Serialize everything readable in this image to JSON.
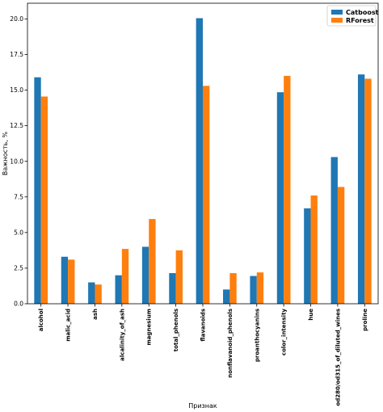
{
  "chart_data": {
    "type": "bar",
    "categories": [
      "alcohol",
      "malic_acid",
      "ash",
      "alcalinity_of_ash",
      "magnesium",
      "total_phenols",
      "flavanoids",
      "nonflavanoid_phenols",
      "proanthocyanins",
      "color_intensity",
      "hue",
      "od280/od315_of_diluted_wines",
      "proline"
    ],
    "series": [
      {
        "name": "Catboost",
        "color": "#1f77b4",
        "values": [
          15.9,
          3.3,
          1.5,
          2.0,
          4.0,
          2.15,
          20.05,
          1.0,
          1.95,
          14.85,
          6.7,
          10.3,
          16.1
        ]
      },
      {
        "name": "RForest",
        "color": "#ff7f0e",
        "values": [
          14.55,
          3.1,
          1.35,
          3.85,
          5.95,
          3.75,
          15.3,
          2.15,
          2.2,
          16.0,
          7.6,
          8.2,
          15.8
        ]
      }
    ],
    "title": "",
    "xlabel": "Признак",
    "ylabel": "Важность, %",
    "ylim": [
      0,
      21.1
    ],
    "yticks": [
      "0.0",
      "2.5",
      "5.0",
      "7.5",
      "10.0",
      "12.5",
      "15.0",
      "17.5",
      "20.0"
    ],
    "grid": false,
    "legend": "top-right"
  }
}
